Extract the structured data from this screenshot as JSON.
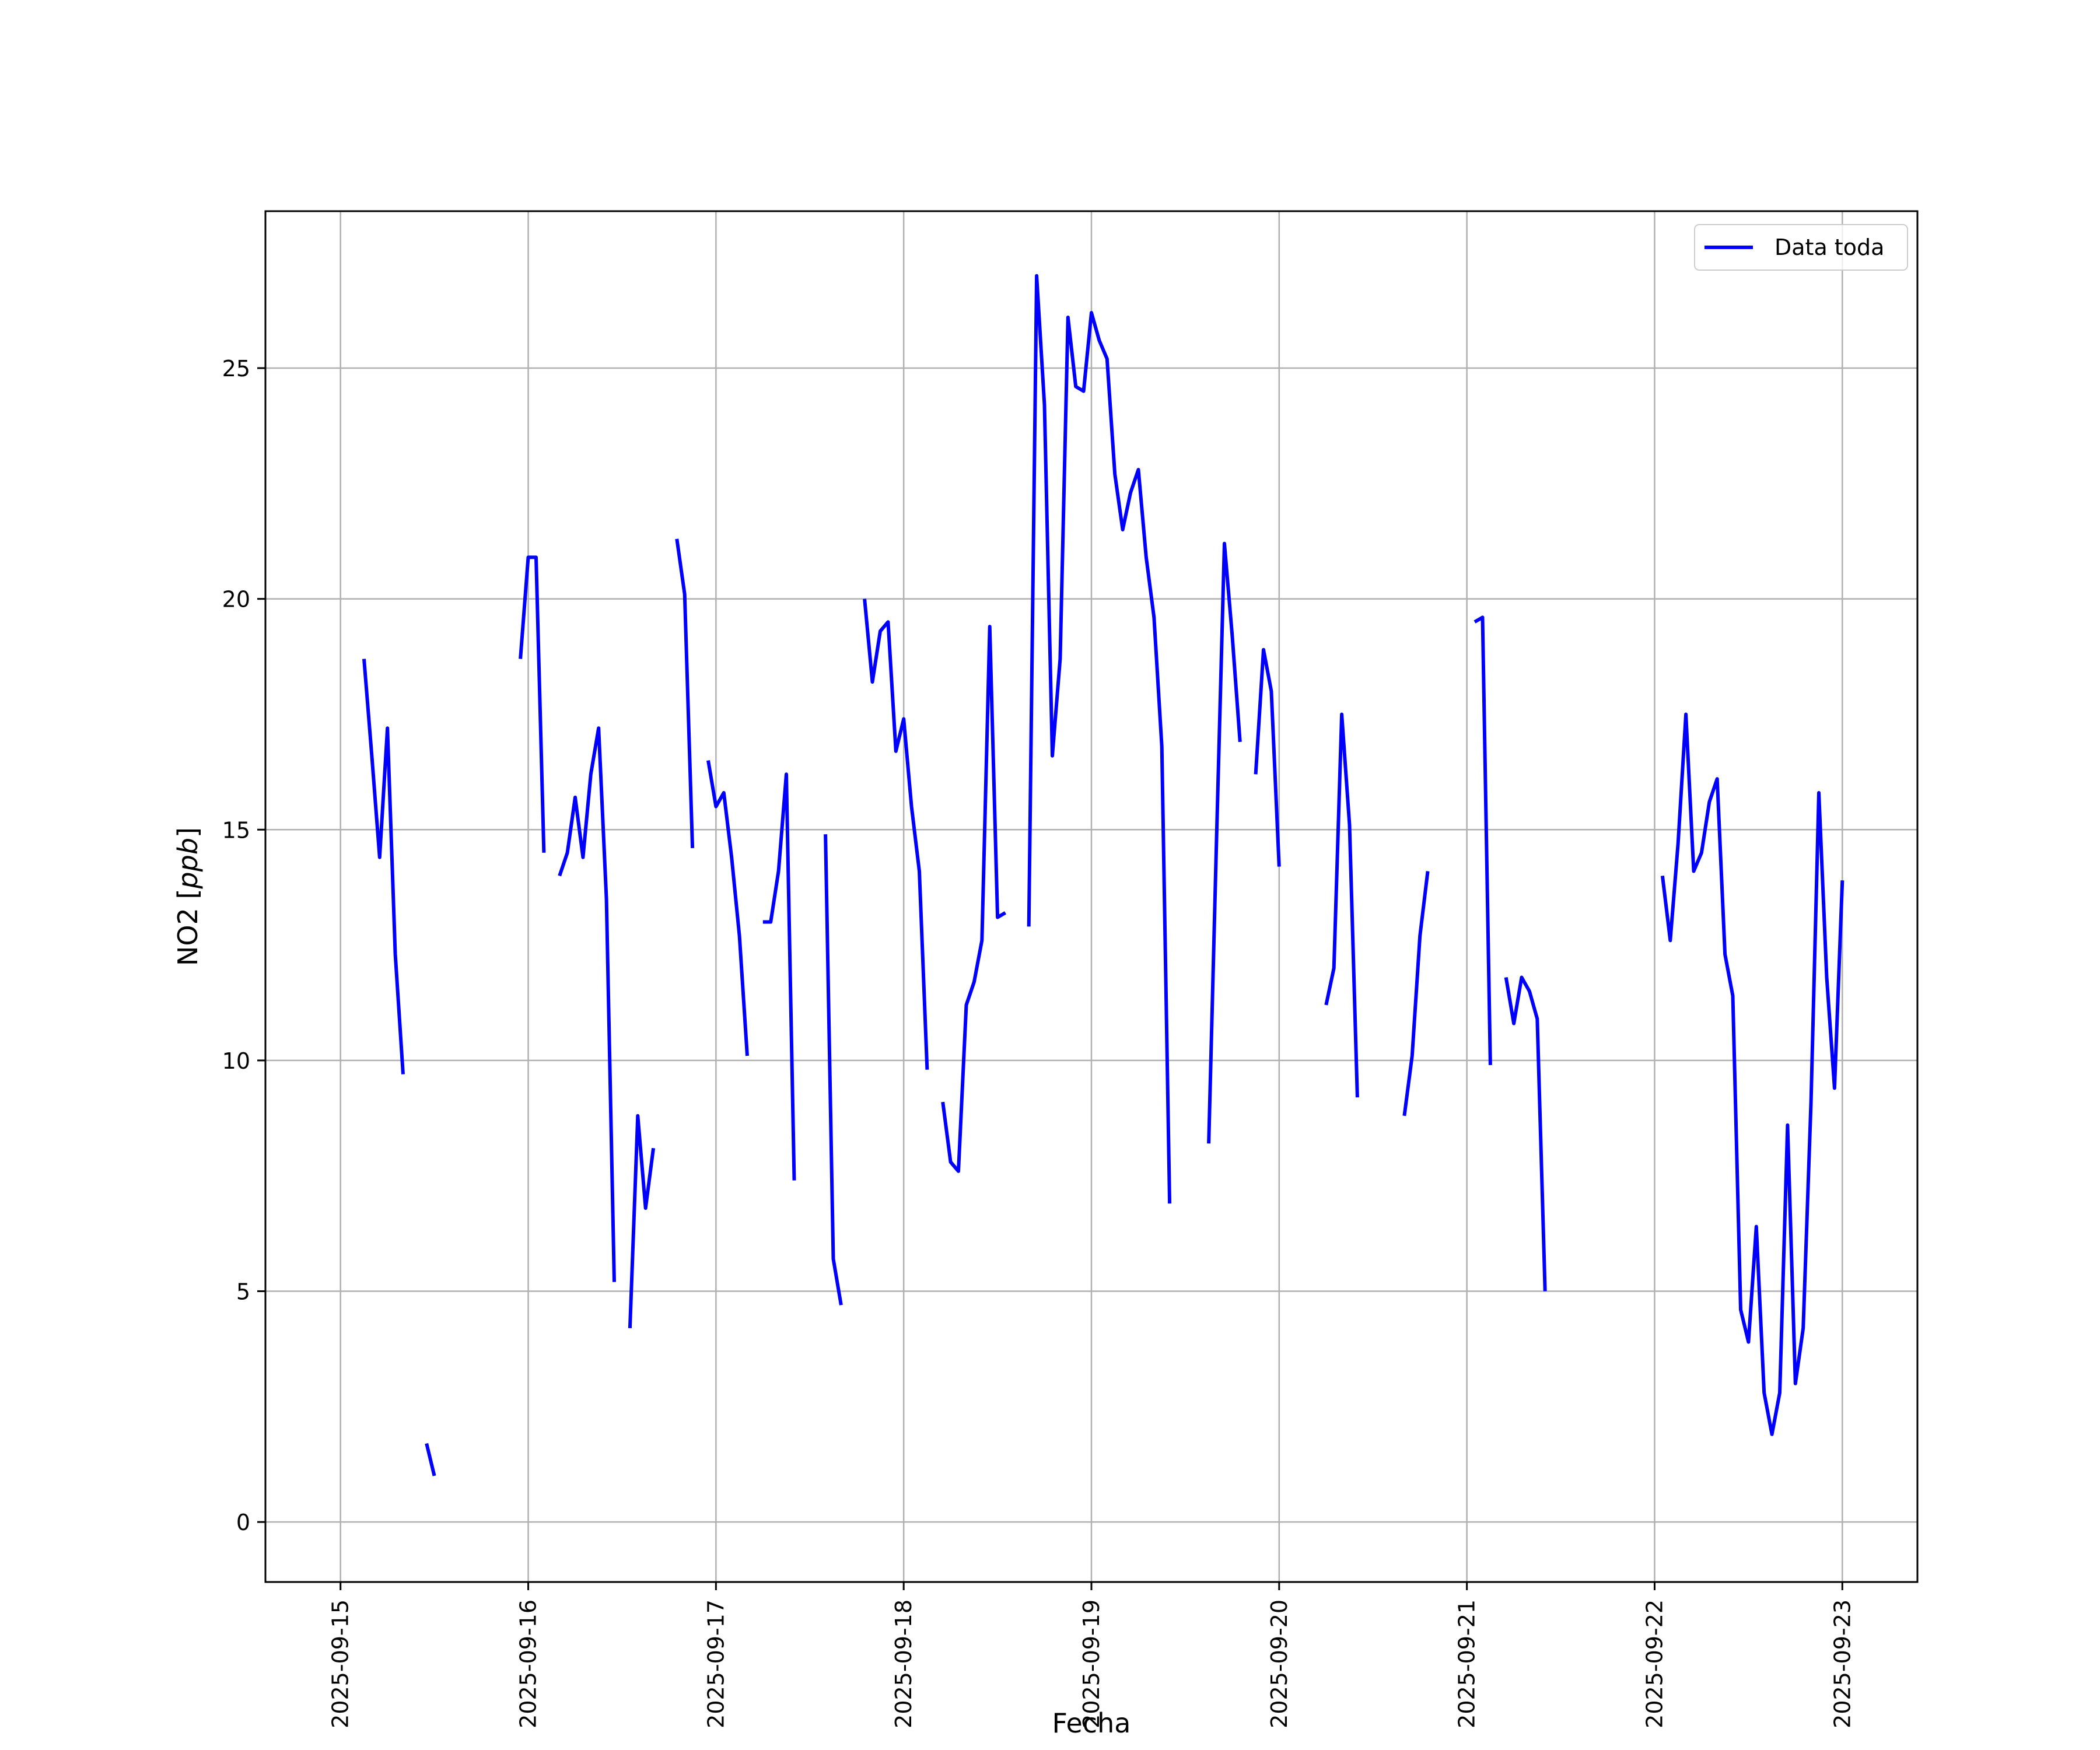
{
  "chart_data": {
    "type": "line",
    "title": "",
    "xlabel": "Fecha",
    "ylabel": "NO2 [ppb]",
    "ylabel_parts": {
      "main": "NO2 [",
      "italic": "ppb",
      "close": "]"
    },
    "x_ticks": [
      "2025-09-15",
      "2025-09-16",
      "2025-09-17",
      "2025-09-18",
      "2025-09-19",
      "2025-09-20",
      "2025-09-21",
      "2025-09-22",
      "2025-09-23"
    ],
    "y_ticks": [
      0,
      5,
      10,
      15,
      20,
      25
    ],
    "xlim": [
      "2025-09-14 14:24",
      "2025-09-23 09:36"
    ],
    "ylim": [
      -1.3,
      28.4
    ],
    "grid": true,
    "legend": {
      "position": "top-right",
      "entries": [
        "Data toda"
      ]
    },
    "colors": {
      "series": "#0000ff",
      "grid": "#b0b0b0",
      "axes": "#000000"
    },
    "series": [
      {
        "name": "Data toda",
        "segments": [
          [
            [
              "2025-09-15 03:00",
              18.7
            ],
            [
              "2025-09-15 04:00",
              16.6
            ],
            [
              "2025-09-15 05:00",
              14.4
            ],
            [
              "2025-09-15 06:00",
              17.2
            ],
            [
              "2025-09-15 07:00",
              12.3
            ],
            [
              "2025-09-15 08:00",
              9.7
            ]
          ],
          [
            [
              "2025-09-15 11:00",
              1.7
            ],
            [
              "2025-09-15 12:00",
              1.0
            ]
          ],
          [
            [
              "2025-09-15 23:00",
              18.7
            ],
            [
              "2025-09-16 00:00",
              20.9
            ],
            [
              "2025-09-16 01:00",
              20.9
            ],
            [
              "2025-09-16 02:00",
              14.5
            ]
          ],
          [
            [
              "2025-09-16 04:00",
              14.0
            ],
            [
              "2025-09-16 05:00",
              14.5
            ],
            [
              "2025-09-16 06:00",
              15.7
            ],
            [
              "2025-09-16 07:00",
              14.4
            ],
            [
              "2025-09-16 08:00",
              16.2
            ],
            [
              "2025-09-16 09:00",
              17.2
            ],
            [
              "2025-09-16 10:00",
              13.5
            ],
            [
              "2025-09-16 11:00",
              5.2
            ]
          ],
          [
            [
              "2025-09-16 13:00",
              4.2
            ],
            [
              "2025-09-16 14:00",
              8.8
            ],
            [
              "2025-09-16 15:00",
              6.8
            ],
            [
              "2025-09-16 16:00",
              8.1
            ]
          ],
          [
            [
              "2025-09-16 19:00",
              21.3
            ],
            [
              "2025-09-16 20:00",
              20.1
            ],
            [
              "2025-09-16 21:00",
              14.6
            ]
          ],
          [
            [
              "2025-09-16 23:00",
              16.5
            ],
            [
              "2025-09-17 00:00",
              15.5
            ],
            [
              "2025-09-17 01:00",
              15.8
            ],
            [
              "2025-09-17 02:00",
              14.4
            ],
            [
              "2025-09-17 03:00",
              12.7
            ],
            [
              "2025-09-17 04:00",
              10.1
            ]
          ],
          [
            [
              "2025-09-17 06:00",
              13.0
            ],
            [
              "2025-09-17 07:00",
              13.0
            ],
            [
              "2025-09-17 08:00",
              14.1
            ],
            [
              "2025-09-17 09:00",
              16.2
            ],
            [
              "2025-09-17 10:00",
              7.4
            ]
          ],
          [
            [
              "2025-09-17 14:00",
              14.9
            ],
            [
              "2025-09-17 15:00",
              5.7
            ],
            [
              "2025-09-17 16:00",
              4.7
            ]
          ],
          [
            [
              "2025-09-17 19:00",
              20.0
            ],
            [
              "2025-09-17 20:00",
              18.2
            ],
            [
              "2025-09-17 21:00",
              19.3
            ],
            [
              "2025-09-17 22:00",
              19.5
            ],
            [
              "2025-09-17 23:00",
              16.7
            ],
            [
              "2025-09-18 00:00",
              17.4
            ],
            [
              "2025-09-18 01:00",
              15.5
            ],
            [
              "2025-09-18 02:00",
              14.1
            ],
            [
              "2025-09-18 03:00",
              9.8
            ]
          ],
          [
            [
              "2025-09-18 05:00",
              9.1
            ],
            [
              "2025-09-18 06:00",
              7.8
            ],
            [
              "2025-09-18 07:00",
              7.6
            ],
            [
              "2025-09-18 08:00",
              11.2
            ],
            [
              "2025-09-18 09:00",
              11.7
            ],
            [
              "2025-09-18 10:00",
              12.6
            ],
            [
              "2025-09-18 11:00",
              19.4
            ],
            [
              "2025-09-18 12:00",
              13.1
            ],
            [
              "2025-09-18 13:00",
              13.2
            ]
          ],
          [
            [
              "2025-09-18 16:00",
              12.9
            ],
            [
              "2025-09-18 17:00",
              27.0
            ],
            [
              "2025-09-18 18:00",
              24.2
            ],
            [
              "2025-09-18 19:00",
              16.6
            ],
            [
              "2025-09-18 20:00",
              18.7
            ],
            [
              "2025-09-18 21:00",
              26.1
            ],
            [
              "2025-09-18 22:00",
              24.6
            ],
            [
              "2025-09-18 23:00",
              24.5
            ],
            [
              "2025-09-19 00:00",
              26.2
            ],
            [
              "2025-09-19 01:00",
              25.6
            ],
            [
              "2025-09-19 02:00",
              25.2
            ],
            [
              "2025-09-19 03:00",
              22.7
            ],
            [
              "2025-09-19 04:00",
              21.5
            ],
            [
              "2025-09-19 05:00",
              22.3
            ],
            [
              "2025-09-19 06:00",
              22.8
            ],
            [
              "2025-09-19 07:00",
              20.9
            ],
            [
              "2025-09-19 08:00",
              19.6
            ],
            [
              "2025-09-19 09:00",
              16.8
            ],
            [
              "2025-09-19 10:00",
              6.9
            ]
          ],
          [
            [
              "2025-09-19 15:00",
              8.2
            ],
            [
              "2025-09-19 16:00",
              14.8
            ],
            [
              "2025-09-19 17:00",
              21.2
            ],
            [
              "2025-09-19 18:00",
              19.2
            ],
            [
              "2025-09-19 19:00",
              16.9
            ]
          ],
          [
            [
              "2025-09-19 21:00",
              16.2
            ],
            [
              "2025-09-19 22:00",
              18.9
            ],
            [
              "2025-09-19 23:00",
              18.0
            ],
            [
              "2025-09-20 00:00",
              14.2
            ]
          ],
          [
            [
              "2025-09-20 06:00",
              11.2
            ],
            [
              "2025-09-20 07:00",
              12.0
            ],
            [
              "2025-09-20 08:00",
              17.5
            ],
            [
              "2025-09-20 09:00",
              15.1
            ],
            [
              "2025-09-20 10:00",
              9.2
            ]
          ],
          [
            [
              "2025-09-20 16:00",
              8.8
            ],
            [
              "2025-09-20 17:00",
              10.1
            ],
            [
              "2025-09-20 18:00",
              12.7
            ],
            [
              "2025-09-20 19:00",
              14.1
            ]
          ],
          [
            [
              "2025-09-21 01:00",
              19.5
            ],
            [
              "2025-09-21 02:00",
              19.6
            ],
            [
              "2025-09-21 03:00",
              9.9
            ]
          ],
          [
            [
              "2025-09-21 05:00",
              11.8
            ],
            [
              "2025-09-21 06:00",
              10.8
            ],
            [
              "2025-09-21 07:00",
              11.8
            ],
            [
              "2025-09-21 08:00",
              11.5
            ],
            [
              "2025-09-21 09:00",
              10.9
            ],
            [
              "2025-09-21 10:00",
              5.0
            ]
          ],
          [
            [
              "2025-09-22 01:00",
              14.0
            ],
            [
              "2025-09-22 02:00",
              12.6
            ],
            [
              "2025-09-22 03:00",
              14.7
            ],
            [
              "2025-09-22 04:00",
              17.5
            ],
            [
              "2025-09-22 05:00",
              14.1
            ],
            [
              "2025-09-22 06:00",
              14.5
            ],
            [
              "2025-09-22 07:00",
              15.6
            ],
            [
              "2025-09-22 08:00",
              16.1
            ],
            [
              "2025-09-22 09:00",
              12.3
            ],
            [
              "2025-09-22 10:00",
              11.4
            ],
            [
              "2025-09-22 11:00",
              4.6
            ],
            [
              "2025-09-22 12:00",
              3.9
            ],
            [
              "2025-09-22 13:00",
              6.4
            ],
            [
              "2025-09-22 14:00",
              2.8
            ],
            [
              "2025-09-22 15:00",
              1.9
            ],
            [
              "2025-09-22 16:00",
              2.8
            ],
            [
              "2025-09-22 17:00",
              8.6
            ],
            [
              "2025-09-22 18:00",
              3.0
            ],
            [
              "2025-09-22 19:00",
              4.2
            ],
            [
              "2025-09-22 20:00",
              9.1
            ],
            [
              "2025-09-22 21:00",
              15.8
            ],
            [
              "2025-09-22 22:00",
              11.8
            ],
            [
              "2025-09-22 23:00",
              9.4
            ],
            [
              "2025-09-23 00:00",
              13.9
            ]
          ]
        ]
      }
    ]
  }
}
